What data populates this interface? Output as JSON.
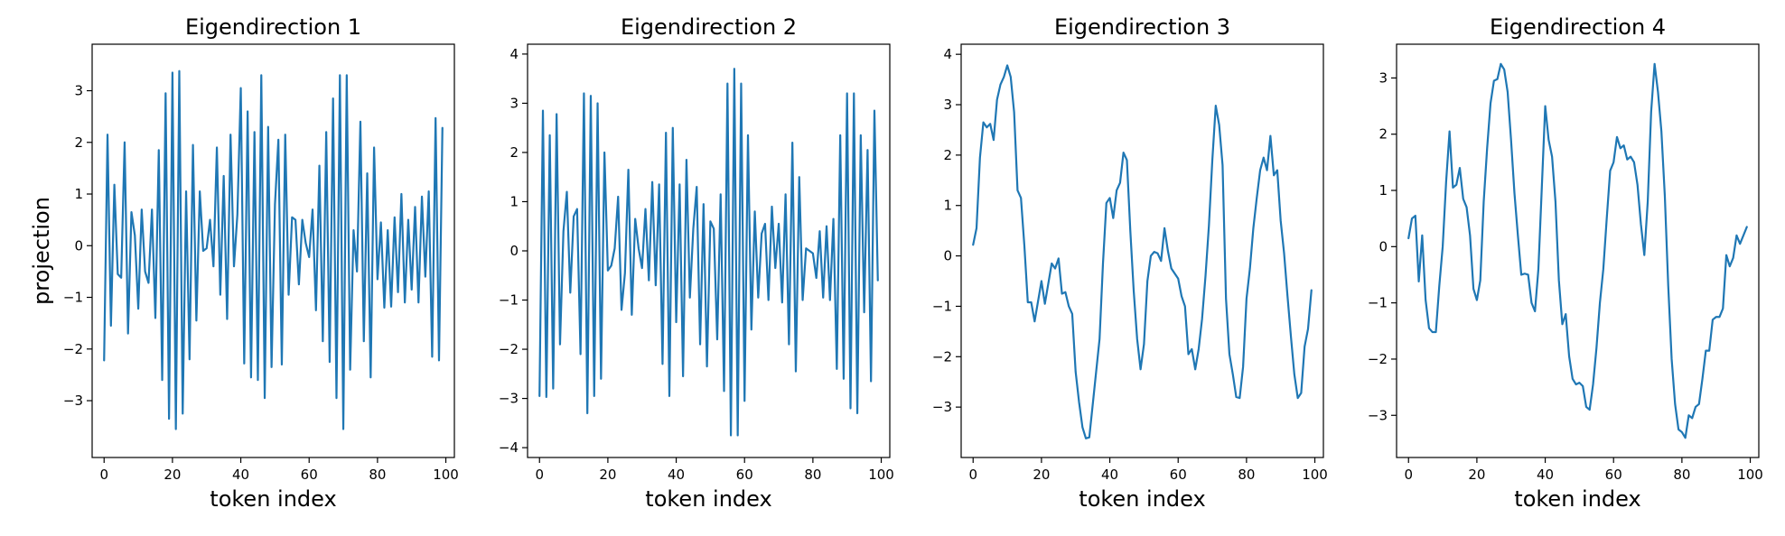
{
  "chart_data": [
    {
      "type": "line",
      "title": "Eigendirection 1",
      "xlabel": "token index",
      "ylabel": "projection",
      "xlim": [
        -3.5,
        102.5
      ],
      "ylim": [
        -4.1,
        3.9
      ],
      "xticks": [
        0,
        20,
        40,
        60,
        80,
        100
      ],
      "yticks": [
        -3,
        -2,
        -1,
        0,
        1,
        2,
        3
      ],
      "color": "#1f77b4",
      "x_start": 0,
      "values": [
        -2.22,
        2.15,
        -1.55,
        1.18,
        -0.55,
        -0.62,
        2.0,
        -1.7,
        0.65,
        0.2,
        -1.22,
        0.7,
        -0.5,
        -0.72,
        0.7,
        -1.4,
        1.85,
        -2.6,
        2.95,
        -3.35,
        3.35,
        -3.55,
        3.38,
        -3.25,
        1.05,
        -2.2,
        1.95,
        -1.45,
        1.05,
        -0.1,
        -0.05,
        0.5,
        -0.4,
        1.9,
        -0.95,
        1.35,
        -1.42,
        2.15,
        -0.4,
        0.6,
        3.05,
        -2.28,
        2.6,
        -2.55,
        2.2,
        -2.6,
        3.3,
        -2.95,
        2.3,
        -2.35,
        0.8,
        2.05,
        -2.3,
        2.15,
        -0.95,
        0.55,
        0.5,
        -0.75,
        0.5,
        0.05,
        -0.22,
        0.7,
        -1.25,
        1.55,
        -1.85,
        2.2,
        -2.25,
        2.85,
        -2.95,
        3.3,
        -3.55,
        3.3,
        -2.4,
        0.3,
        -0.5,
        2.4,
        -1.85,
        1.4,
        -2.55,
        1.9,
        -0.65,
        0.45,
        -1.2,
        0.3,
        -1.18,
        0.55,
        -0.9,
        1.0,
        -1.1,
        0.5,
        -0.85,
        0.75,
        -1.1,
        0.95,
        -0.6,
        1.05,
        -2.15,
        2.47,
        -2.22,
        2.28
      ]
    },
    {
      "type": "line",
      "title": "Eigendirection 2",
      "xlabel": "token index",
      "ylabel": "",
      "xlim": [
        -3.5,
        102.5
      ],
      "ylim": [
        -4.2,
        4.2
      ],
      "xticks": [
        0,
        20,
        40,
        60,
        80,
        100
      ],
      "yticks": [
        -4,
        -3,
        -2,
        -1,
        0,
        1,
        2,
        3,
        4
      ],
      "color": "#1f77b4",
      "x_start": 0,
      "values": [
        -2.95,
        2.85,
        -2.97,
        2.35,
        -2.8,
        2.78,
        -1.9,
        0.4,
        1.2,
        -0.85,
        0.7,
        0.85,
        -2.1,
        3.2,
        -3.3,
        3.15,
        -2.95,
        3.0,
        -2.6,
        2.0,
        -0.4,
        -0.3,
        0.05,
        1.1,
        -1.2,
        -0.45,
        1.65,
        -1.3,
        0.65,
        0.05,
        -0.35,
        0.85,
        -0.6,
        1.4,
        -0.7,
        1.35,
        -2.3,
        2.4,
        -2.95,
        2.5,
        -1.45,
        1.35,
        -2.55,
        1.85,
        -0.95,
        0.45,
        1.3,
        -1.9,
        0.95,
        -2.35,
        0.6,
        0.45,
        -1.8,
        1.15,
        -2.85,
        3.4,
        -3.75,
        3.7,
        -3.75,
        3.4,
        -3.05,
        2.35,
        -1.6,
        0.8,
        -0.95,
        0.35,
        0.55,
        -1.0,
        0.9,
        -0.35,
        0.55,
        -1.05,
        1.15,
        -1.9,
        2.2,
        -2.45,
        1.5,
        -1.0,
        0.05,
        0.0,
        -0.05,
        -0.55,
        0.4,
        -0.95,
        0.5,
        -1.0,
        0.65,
        -2.4,
        2.35,
        -2.6,
        3.2,
        -3.2,
        3.2,
        -3.3,
        2.35,
        -1.25,
        2.05,
        -2.65,
        2.85,
        -0.6
      ]
    },
    {
      "type": "line",
      "title": "Eigendirection 3",
      "xlabel": "token index",
      "ylabel": "",
      "xlim": [
        -3.5,
        102.5
      ],
      "ylim": [
        -4.0,
        4.2
      ],
      "xticks": [
        0,
        20,
        40,
        60,
        80,
        100
      ],
      "yticks": [
        -3,
        -2,
        -1,
        0,
        1,
        2,
        3,
        4
      ],
      "color": "#1f77b4",
      "x_start": 0,
      "values": [
        0.22,
        0.55,
        1.95,
        2.65,
        2.55,
        2.62,
        2.3,
        3.1,
        3.4,
        3.55,
        3.78,
        3.55,
        2.85,
        1.3,
        1.15,
        0.2,
        -0.92,
        -0.92,
        -1.3,
        -0.9,
        -0.5,
        -0.95,
        -0.55,
        -0.15,
        -0.25,
        -0.05,
        -0.75,
        -0.72,
        -1.0,
        -1.15,
        -2.3,
        -2.9,
        -3.4,
        -3.62,
        -3.6,
        -2.95,
        -2.3,
        -1.65,
        -0.15,
        1.05,
        1.15,
        0.75,
        1.3,
        1.45,
        2.05,
        1.9,
        0.5,
        -0.7,
        -1.65,
        -2.25,
        -1.75,
        -0.5,
        0.0,
        0.08,
        0.05,
        -0.1,
        0.55,
        0.1,
        -0.25,
        -0.35,
        -0.45,
        -0.8,
        -1.0,
        -1.95,
        -1.85,
        -2.25,
        -1.85,
        -1.25,
        -0.4,
        0.6,
        1.9,
        2.98,
        2.6,
        1.8,
        -0.85,
        -1.95,
        -2.35,
        -2.8,
        -2.82,
        -2.2,
        -0.85,
        -0.25,
        0.55,
        1.15,
        1.7,
        1.95,
        1.7,
        2.38,
        1.6,
        1.7,
        0.7,
        0.05,
        -0.8,
        -1.6,
        -2.35,
        -2.82,
        -2.72,
        -1.8,
        -1.45,
        -0.68
      ]
    },
    {
      "type": "line",
      "title": "Eigendirection 4",
      "xlabel": "token index",
      "ylabel": "",
      "xlim": [
        -3.5,
        102.5
      ],
      "ylim": [
        -3.75,
        3.6
      ],
      "xticks": [
        0,
        20,
        40,
        60,
        80,
        100
      ],
      "yticks": [
        -3,
        -2,
        -1,
        0,
        1,
        2,
        3
      ],
      "color": "#1f77b4",
      "x_start": 0,
      "values": [
        0.15,
        0.5,
        0.55,
        -0.62,
        0.2,
        -0.95,
        -1.45,
        -1.52,
        -1.52,
        -0.7,
        0.0,
        1.15,
        2.05,
        1.05,
        1.1,
        1.4,
        0.85,
        0.7,
        0.2,
        -0.75,
        -0.95,
        -0.6,
        0.8,
        1.75,
        2.55,
        2.95,
        2.98,
        3.25,
        3.15,
        2.75,
        1.9,
        0.95,
        0.2,
        -0.5,
        -0.48,
        -0.5,
        -1.0,
        -1.15,
        -0.4,
        1.05,
        2.5,
        1.9,
        1.6,
        0.8,
        -0.6,
        -1.38,
        -1.2,
        -1.95,
        -2.35,
        -2.45,
        -2.42,
        -2.48,
        -2.85,
        -2.9,
        -2.45,
        -1.8,
        -1.0,
        -0.4,
        0.5,
        1.35,
        1.5,
        1.95,
        1.75,
        1.8,
        1.55,
        1.6,
        1.5,
        1.1,
        0.4,
        -0.15,
        0.8,
        2.4,
        3.25,
        2.75,
        2.05,
        0.9,
        -0.7,
        -2.0,
        -2.8,
        -3.25,
        -3.3,
        -3.4,
        -3.0,
        -3.05,
        -2.85,
        -2.8,
        -2.35,
        -1.85,
        -1.85,
        -1.3,
        -1.25,
        -1.25,
        -1.1,
        -0.15,
        -0.35,
        -0.2,
        0.2,
        0.05,
        0.2,
        0.35
      ]
    }
  ]
}
